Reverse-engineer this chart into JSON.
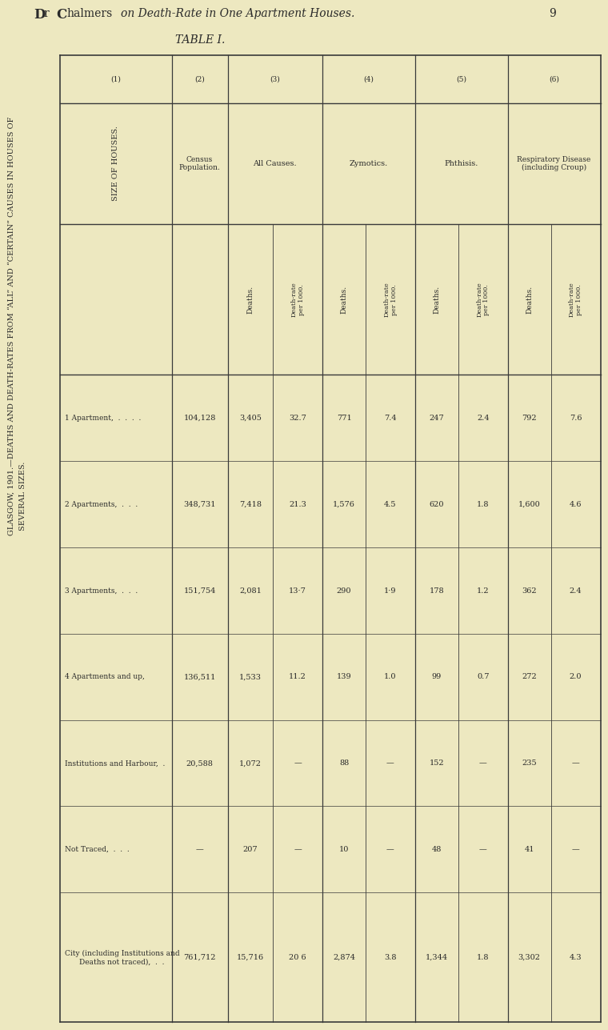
{
  "page_header_normal": "Dr C",
  "page_header_smallcaps": "halmers",
  "page_header_italic": " on Death-Rate in One Apartment Houses.",
  "page_number": "9",
  "background_color": "#ede8c0",
  "side_text1": "GLASGOW, 1901.—DEATHS AND DEATH-RATES FROM “ALL” AND “CERTAIN” CAUSES IN HOUSES OF",
  "side_text2": "SEVERAL SIZES.",
  "table_label": "TABLE I.",
  "rows": [
    {
      "size": "1 Apartment,  .  .  .  .",
      "population": "104,128",
      "all_deaths": "3,405",
      "all_rate": "32.7",
      "zymo_deaths": "771",
      "zymo_rate": "7.4",
      "phth_deaths": "247",
      "phth_rate": "2.4",
      "resp_deaths": "792",
      "resp_rate": "7.6"
    },
    {
      "size": "2 Apartments,  .  .  .",
      "population": "348,731",
      "all_deaths": "7,418",
      "all_rate": "21.3",
      "zymo_deaths": "1,576",
      "zymo_rate": "4.5",
      "phth_deaths": "620",
      "phth_rate": "1.8",
      "resp_deaths": "1,600",
      "resp_rate": "4.6"
    },
    {
      "size": "3 Apartments,  .  .  .",
      "population": "151,754",
      "all_deaths": "2,081",
      "all_rate": "13·7",
      "zymo_deaths": "290",
      "zymo_rate": "1·9",
      "phth_deaths": "178",
      "phth_rate": "1.2",
      "resp_deaths": "362",
      "resp_rate": "2.4"
    },
    {
      "size": "4 Apartments and up,",
      "population": "136,511",
      "all_deaths": "1,533",
      "all_rate": "11.2",
      "zymo_deaths": "139",
      "zymo_rate": "1.0",
      "phth_deaths": "99",
      "phth_rate": "0.7",
      "resp_deaths": "272",
      "resp_rate": "2.0"
    },
    {
      "size": "Institutions and Harbour,  .",
      "population": "20,588",
      "all_deaths": "1,072",
      "all_rate": "—",
      "zymo_deaths": "88",
      "zymo_rate": "—",
      "phth_deaths": "152",
      "phth_rate": "—",
      "resp_deaths": "235",
      "resp_rate": "—"
    },
    {
      "size": "Not Traced,  .  .  .",
      "population": "—",
      "all_deaths": "207",
      "all_rate": "—",
      "zymo_deaths": "10",
      "zymo_rate": "—",
      "phth_deaths": "48",
      "phth_rate": "—",
      "resp_deaths": "41",
      "resp_rate": "—"
    },
    {
      "size": "City (including Institutions and\nDeaths not traced),  .  .",
      "population": "761,712",
      "all_deaths": "15,716",
      "all_rate": "20 6",
      "zymo_deaths": "2,874",
      "zymo_rate": "3.8",
      "phth_deaths": "1,344",
      "phth_rate": "1.8",
      "resp_deaths": "3,302",
      "resp_rate": "4.3"
    }
  ]
}
